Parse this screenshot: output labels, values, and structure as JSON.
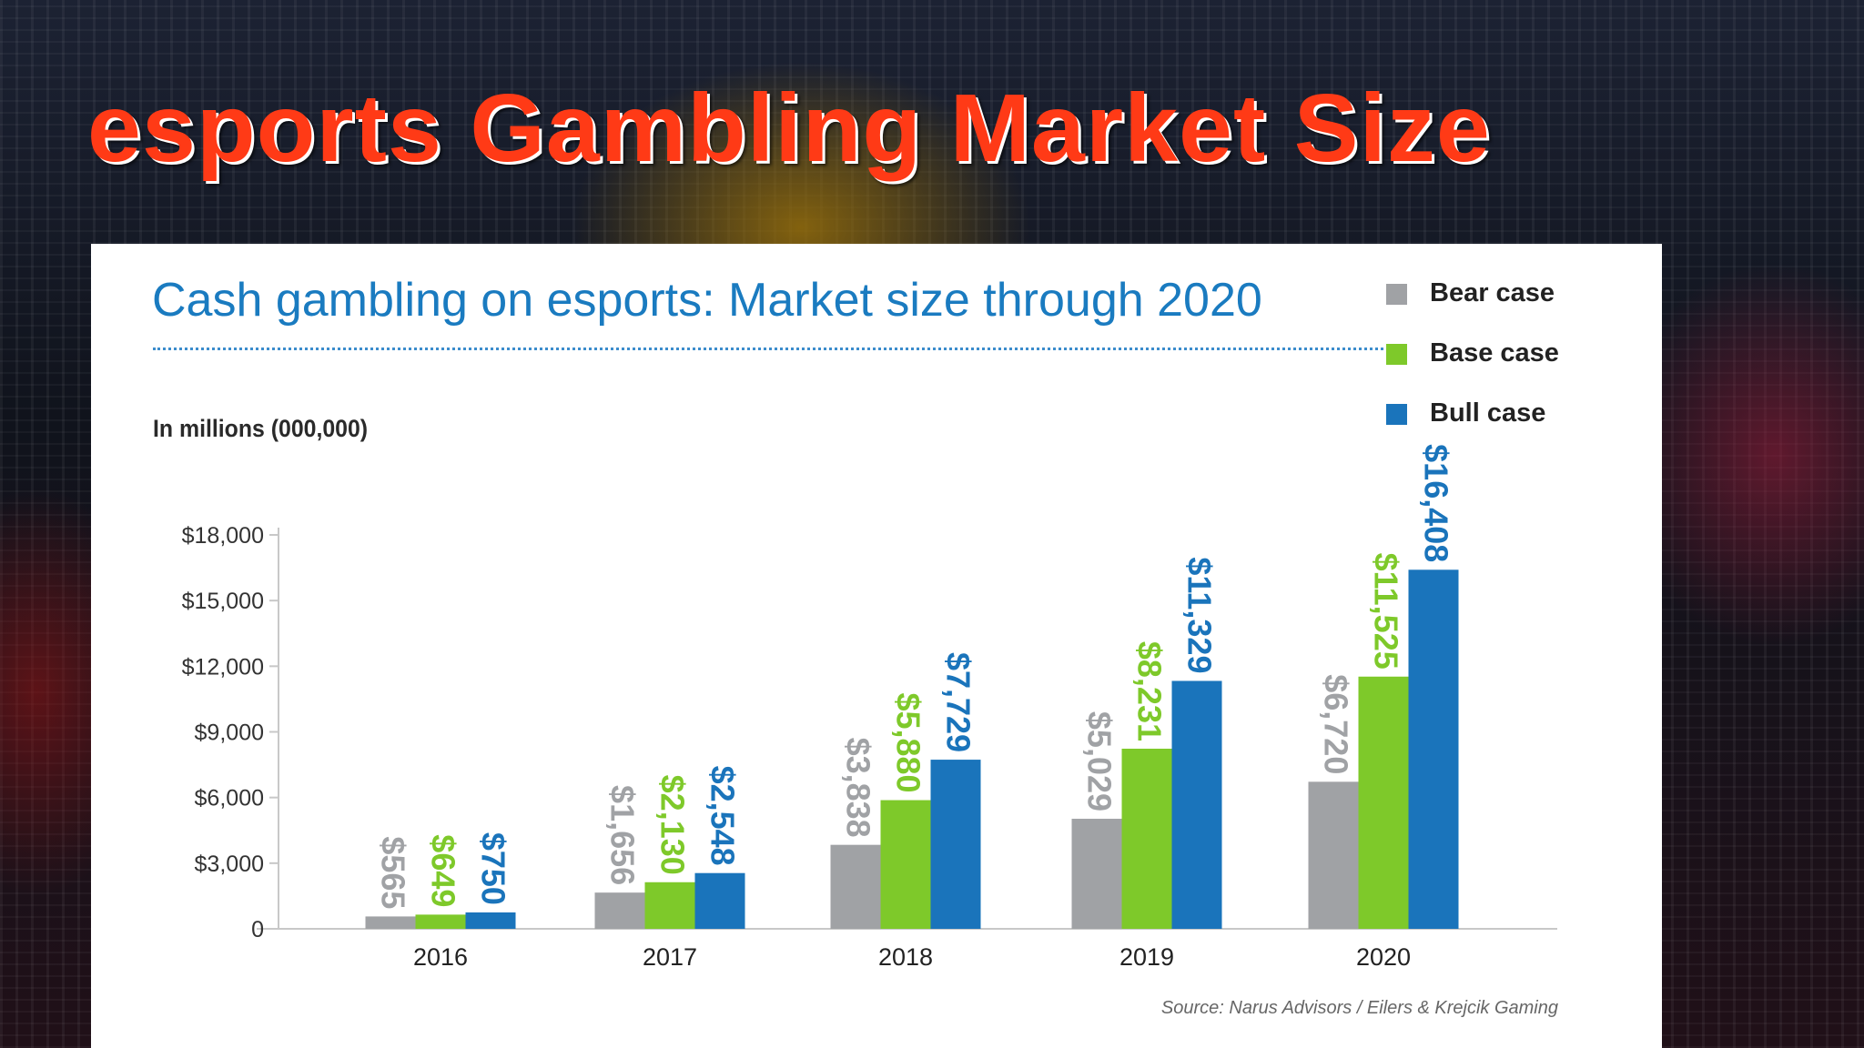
{
  "slide": {
    "title": "esports Gambling Market Size"
  },
  "chart_data": {
    "type": "bar",
    "title": "Cash gambling on esports: Market size through 2020",
    "ylabel": "In millions (000,000)",
    "xlabel": "",
    "categories": [
      "2016",
      "2017",
      "2018",
      "2019",
      "2020"
    ],
    "series": [
      {
        "name": "Bear case",
        "color": "#a0a2a5",
        "values": [
          565,
          1656,
          3838,
          5029,
          6720
        ]
      },
      {
        "name": "Base case",
        "color": "#7ec92a",
        "values": [
          649,
          2130,
          5880,
          8231,
          11525
        ]
      },
      {
        "name": "Bull case",
        "color": "#1a74bb",
        "values": [
          750,
          2548,
          7729,
          11329,
          16408
        ]
      }
    ],
    "value_labels": [
      [
        "$565",
        "$1,656",
        "$3,838",
        "$5,029",
        "$6,720"
      ],
      [
        "$649",
        "$2,130",
        "$5,880",
        "$8,231",
        "$11,525"
      ],
      [
        "$750",
        "$2,548",
        "$7,729",
        "$11,329",
        "$16,408"
      ]
    ],
    "yticks": [
      0,
      3000,
      6000,
      9000,
      12000,
      15000,
      18000
    ],
    "ytick_labels": [
      "0",
      "$3,000",
      "$6,000",
      "$9,000",
      "$12,000",
      "$15,000",
      "$18,000"
    ],
    "ylim": [
      0,
      18000
    ],
    "legend_position": "top-right",
    "grid": false
  },
  "source": "Source: Narus Advisors / Eilers & Krejcik  Gaming"
}
